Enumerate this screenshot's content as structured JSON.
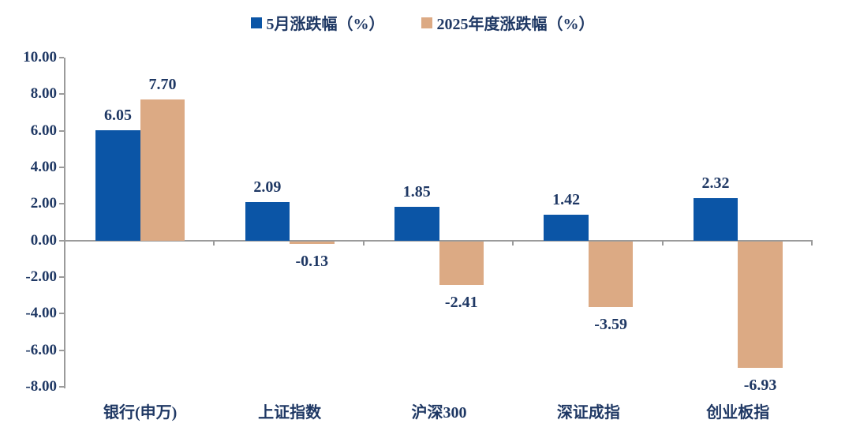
{
  "chart_data": {
    "type": "bar",
    "title": "",
    "categories": [
      "银行(申万)",
      "上证指数",
      "沪深300",
      "深证成指",
      "创业板指"
    ],
    "series": [
      {
        "name": "5月涨跌幅（%）",
        "color": "#0B55A6",
        "values": [
          6.05,
          2.09,
          1.85,
          1.42,
          2.32
        ],
        "labels": [
          "6.05",
          "2.09",
          "1.85",
          "1.42",
          "2.32"
        ]
      },
      {
        "name": "2025年度涨跌幅（%）",
        "color": "#DCAA84",
        "values": [
          7.7,
          -0.13,
          -2.41,
          -3.59,
          -6.93
        ],
        "labels": [
          "7.70",
          "-0.13",
          "-2.41",
          "-3.59",
          "-6.93"
        ]
      }
    ],
    "y_axis": {
      "min": -8,
      "max": 10,
      "step": 2,
      "tick_labels": [
        "10.00",
        "8.00",
        "6.00",
        "4.00",
        "2.00",
        "0.00",
        "-2.00",
        "-4.00",
        "-6.00",
        "-8.00"
      ]
    },
    "xlabel": "",
    "ylabel": "",
    "legend_position": "top",
    "grid": false,
    "value_labels_shown": true,
    "axis_color": "#9B9B9B",
    "text_color": "#1F3864",
    "background": "#FFFFFF"
  }
}
